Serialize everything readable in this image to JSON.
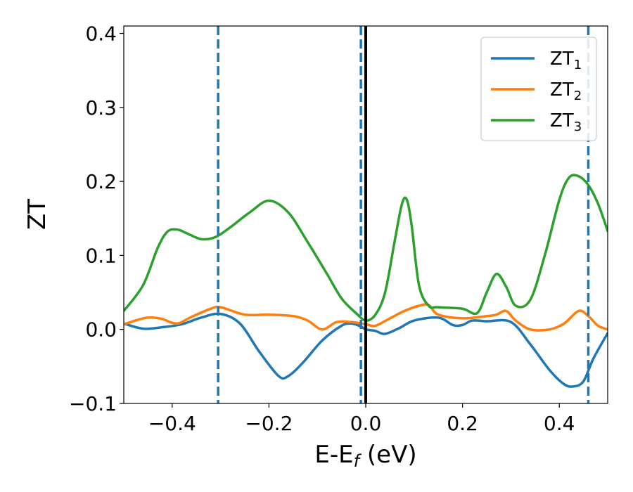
{
  "chart_data": {
    "type": "line",
    "xlabel_main": "E-E",
    "xlabel_sub": "f",
    "xlabel_unit": " (eV)",
    "ylabel": "ZT",
    "xlim": [
      -0.5,
      0.5
    ],
    "ylim": [
      -0.1,
      0.41
    ],
    "xticks": [
      -0.4,
      -0.2,
      0.0,
      0.2,
      0.4
    ],
    "xtick_labels": [
      "−0.4",
      "−0.2",
      "0.0",
      "0.2",
      "0.4"
    ],
    "yticks": [
      -0.1,
      0.0,
      0.1,
      0.2,
      0.3,
      0.4
    ],
    "ytick_labels": [
      "−0.1",
      "0.0",
      "0.1",
      "0.2",
      "0.3",
      "0.4"
    ],
    "legend_position": "top-right",
    "fermi_line": {
      "x": 0.0,
      "color": "#000000"
    },
    "dashed_lines": {
      "x": [
        -0.305,
        -0.01,
        0.46
      ],
      "color": "#1f77b4"
    },
    "series": [
      {
        "name_main": "ZT",
        "name_sub": "1",
        "color": "#1f77b4",
        "x": [
          -0.5,
          -0.46,
          -0.42,
          -0.38,
          -0.34,
          -0.3,
          -0.26,
          -0.22,
          -0.18,
          -0.16,
          -0.13,
          -0.09,
          -0.05,
          -0.03,
          -0.01,
          0.0,
          0.02,
          0.04,
          0.07,
          0.1,
          0.15,
          0.18,
          0.2,
          0.22,
          0.25,
          0.3,
          0.34,
          0.38,
          0.41,
          0.43,
          0.45,
          0.47,
          0.5
        ],
        "y": [
          0.008,
          0.001,
          0.003,
          0.007,
          0.016,
          0.021,
          0.008,
          -0.03,
          -0.063,
          -0.063,
          -0.045,
          -0.015,
          0.005,
          0.008,
          0.004,
          0.0,
          -0.002,
          -0.006,
          0.002,
          0.012,
          0.016,
          0.006,
          0.006,
          0.012,
          0.011,
          0.01,
          -0.02,
          -0.055,
          -0.074,
          -0.077,
          -0.07,
          -0.04,
          -0.005
        ]
      },
      {
        "name_main": "ZT",
        "name_sub": "2",
        "color": "#ff7f0e",
        "x": [
          -0.5,
          -0.46,
          -0.44,
          -0.42,
          -0.39,
          -0.36,
          -0.32,
          -0.3,
          -0.25,
          -0.2,
          -0.15,
          -0.12,
          -0.09,
          -0.06,
          -0.03,
          0.0,
          0.02,
          0.05,
          0.08,
          0.11,
          0.13,
          0.15,
          0.2,
          0.25,
          0.27,
          0.29,
          0.31,
          0.34,
          0.38,
          0.41,
          0.44,
          0.46,
          0.48,
          0.5
        ],
        "y": [
          0.007,
          0.015,
          0.016,
          0.014,
          0.008,
          0.017,
          0.028,
          0.03,
          0.02,
          0.02,
          0.018,
          0.012,
          0.0,
          0.01,
          0.01,
          0.007,
          0.005,
          0.015,
          0.025,
          0.032,
          0.033,
          0.02,
          0.015,
          0.018,
          0.02,
          0.025,
          0.012,
          0.0,
          0.0,
          0.008,
          0.025,
          0.018,
          0.005,
          0.0
        ]
      },
      {
        "name_main": "ZT",
        "name_sub": "3",
        "color": "#2ca02c",
        "x": [
          -0.5,
          -0.46,
          -0.43,
          -0.41,
          -0.39,
          -0.37,
          -0.34,
          -0.31,
          -0.28,
          -0.24,
          -0.2,
          -0.16,
          -0.12,
          -0.08,
          -0.05,
          -0.02,
          0.0,
          0.02,
          0.04,
          0.06,
          0.075,
          0.085,
          0.095,
          0.11,
          0.13,
          0.15,
          0.2,
          0.23,
          0.25,
          0.27,
          0.29,
          0.31,
          0.34,
          0.37,
          0.4,
          0.42,
          0.44,
          0.46,
          0.48,
          0.5
        ],
        "y": [
          0.025,
          0.06,
          0.11,
          0.132,
          0.135,
          0.13,
          0.122,
          0.125,
          0.138,
          0.158,
          0.174,
          0.158,
          0.118,
          0.075,
          0.042,
          0.022,
          0.012,
          0.02,
          0.05,
          0.12,
          0.17,
          0.175,
          0.14,
          0.06,
          0.032,
          0.03,
          0.028,
          0.022,
          0.05,
          0.075,
          0.058,
          0.032,
          0.04,
          0.1,
          0.175,
          0.205,
          0.207,
          0.195,
          0.17,
          0.133
        ]
      }
    ]
  }
}
